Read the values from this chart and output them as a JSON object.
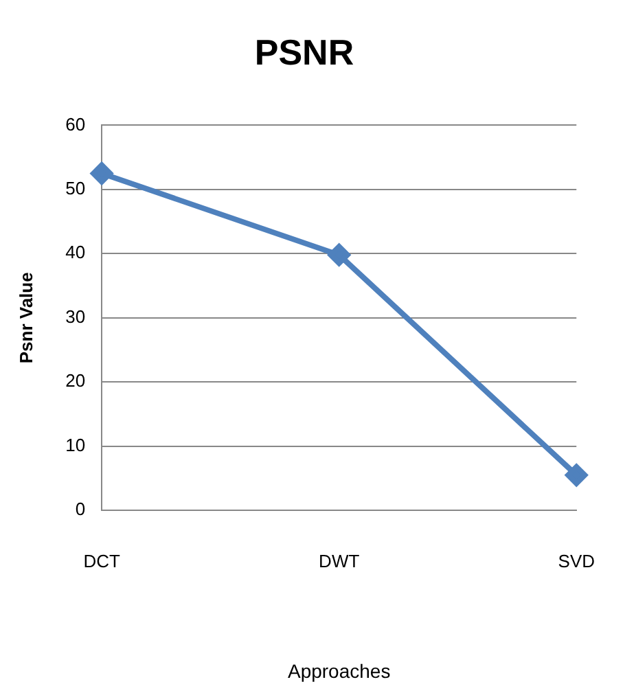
{
  "chart_data": {
    "type": "line",
    "title": "PSNR",
    "xlabel": "Approaches",
    "ylabel": "Psnr Value",
    "categories": [
      "DCT",
      "DWT",
      "SVD"
    ],
    "series": [
      {
        "color": "#4f81bd",
        "values": [
          52.5,
          39.8,
          5.5
        ]
      }
    ],
    "ylim": [
      0,
      60
    ],
    "yticks": [
      0,
      10,
      20,
      30,
      40,
      50,
      60
    ],
    "grid": "y",
    "legend": false,
    "marker": "diamond",
    "line_style": "solid"
  }
}
